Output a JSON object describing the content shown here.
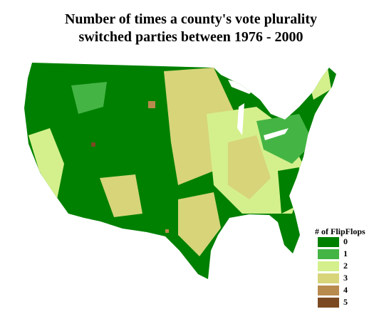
{
  "title_lines": [
    "Number of times a county's vote plurality",
    "switched parties between 1976 - 2000"
  ],
  "legend": {
    "title": "# of FlipFlops",
    "items": [
      {
        "label": "0",
        "color": "#008000"
      },
      {
        "label": "1",
        "color": "#44b544"
      },
      {
        "label": "2",
        "color": "#d4f08c"
      },
      {
        "label": "3",
        "color": "#d7d47a"
      },
      {
        "label": "4",
        "color": "#b98a4e"
      },
      {
        "label": "5",
        "color": "#7b4a22"
      }
    ]
  }
}
